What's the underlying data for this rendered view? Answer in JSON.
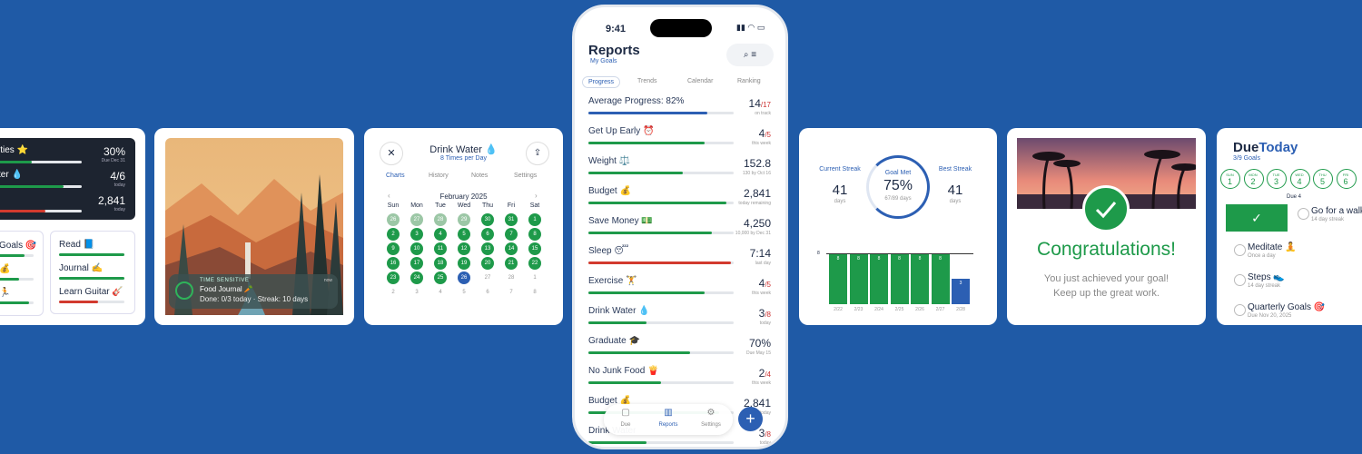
{
  "left_card": {
    "dark_rows": [
      {
        "label": "ities ⭐",
        "value": "30%",
        "sub": "Due Dec 31"
      },
      {
        "label": "ter 💧",
        "value": "4/6",
        "sub": "today"
      },
      {
        "label": "",
        "value": "2,841",
        "sub": "today"
      }
    ],
    "left_list": [
      "Goals 🎯",
      "💰",
      "🏃"
    ],
    "right_list": [
      "Read 📘",
      "Journal ✍️",
      "Learn Guitar 🎸"
    ]
  },
  "image_card": {
    "notification": {
      "tag": "TIME SENSITIVE",
      "title": "Food Journal 🥕",
      "body": "Done: 0/3 today · Streak: 10 days",
      "time": "now"
    }
  },
  "calendar_card": {
    "title": "Drink Water 💧",
    "subtitle": "8 Times per Day",
    "tabs": [
      "Charts",
      "History",
      "Notes",
      "Settings"
    ],
    "month": "February 2025",
    "weekdays": [
      "Sun",
      "Mon",
      "Tue",
      "Wed",
      "Thu",
      "Fri",
      "Sat"
    ],
    "rows": [
      [
        [
          "26",
          "faded"
        ],
        [
          "27",
          "faded"
        ],
        [
          "28",
          "faded"
        ],
        [
          "29",
          "faded"
        ],
        [
          "30",
          "done"
        ],
        [
          "31",
          "done"
        ],
        [
          "1",
          "done"
        ]
      ],
      [
        [
          "2",
          "done"
        ],
        [
          "3",
          "done"
        ],
        [
          "4",
          "done"
        ],
        [
          "5",
          "done"
        ],
        [
          "6",
          "done"
        ],
        [
          "7",
          "done"
        ],
        [
          "8",
          "done"
        ]
      ],
      [
        [
          "9",
          "done"
        ],
        [
          "10",
          "done"
        ],
        [
          "11",
          "done"
        ],
        [
          "12",
          "done"
        ],
        [
          "13",
          "done"
        ],
        [
          "14",
          "done"
        ],
        [
          "15",
          "done"
        ]
      ],
      [
        [
          "16",
          "done"
        ],
        [
          "17",
          "done"
        ],
        [
          "18",
          "done"
        ],
        [
          "19",
          "done"
        ],
        [
          "20",
          "done"
        ],
        [
          "21",
          "done"
        ],
        [
          "22",
          "done"
        ]
      ],
      [
        [
          "23",
          "done"
        ],
        [
          "24",
          "done"
        ],
        [
          "25",
          "done"
        ],
        [
          "26",
          "today"
        ],
        [
          "27",
          "next"
        ],
        [
          "28",
          "next"
        ],
        [
          "1",
          "next"
        ]
      ],
      [
        [
          "2",
          "next"
        ],
        [
          "3",
          "next"
        ],
        [
          "4",
          "next"
        ],
        [
          "5",
          "next"
        ],
        [
          "6",
          "next"
        ],
        [
          "7",
          "next"
        ],
        [
          "8",
          "next"
        ]
      ]
    ]
  },
  "phone": {
    "time": "9:41",
    "title": "Reports",
    "subtitle": "My Goals",
    "tabs": [
      "Progress",
      "Trends",
      "Calendar",
      "Ranking"
    ],
    "items": [
      {
        "label": "Average Progress: 82%",
        "value": "14",
        "denom": "/17",
        "sub": "on track",
        "bar": "blue"
      },
      {
        "label": "Get Up Early ⏰",
        "value": "4",
        "denom": "/5",
        "sub": "this week",
        "bar": "green"
      },
      {
        "label": "Weight ⚖️",
        "value": "152.8",
        "denom": "",
        "sub": "130 by Oct 16",
        "bar": "green"
      },
      {
        "label": "Budget 💰",
        "value": "2,841",
        "denom": "",
        "sub": "today remaining",
        "bar": "green"
      },
      {
        "label": "Save Money 💵",
        "value": "4,250",
        "denom": "",
        "sub": "10,000 by Dec 31",
        "bar": "green"
      },
      {
        "label": "Sleep 😴",
        "value": "7:14",
        "denom": "",
        "sub": "last day",
        "bar": "red"
      },
      {
        "label": "Exercise 🏋️",
        "value": "4",
        "denom": "/5",
        "sub": "this week",
        "bar": "green"
      },
      {
        "label": "Drink Water 💧",
        "value": "3",
        "denom": "/8",
        "sub": "today",
        "bar": "green"
      },
      {
        "label": "Graduate 🎓",
        "value": "70%",
        "denom": "",
        "sub": "Due May 15",
        "bar": "green"
      },
      {
        "label": "No Junk Food 🍟",
        "value": "2",
        "denom": "/4",
        "sub": "this week",
        "bar": "green"
      },
      {
        "label": "Budget 💰",
        "value": "2,841",
        "denom": "",
        "sub": "today",
        "bar": "green"
      },
      {
        "label": "Drink Water",
        "value": "3",
        "denom": "/8",
        "sub": "today",
        "bar": "green"
      }
    ],
    "nav": [
      "Due",
      "Reports",
      "Settings"
    ]
  },
  "streak_card": {
    "current": {
      "label": "Current Streak",
      "value": "41",
      "unit": "days"
    },
    "goal": {
      "label": "Goal Met",
      "value": "75%",
      "sub": "67/89 days"
    },
    "best": {
      "label": "Best Streak",
      "value": "41",
      "unit": "days"
    },
    "bar_labels": [
      "8",
      "8",
      "8",
      "8",
      "8",
      "8",
      "3"
    ],
    "dates": [
      "2/22",
      "2/23",
      "2/24",
      "2/25",
      "2/26",
      "2/27",
      "2/28"
    ],
    "axis_label": "8"
  },
  "congrats_card": {
    "title": "Congratulations!",
    "line1": "You just achieved your goal!",
    "line2": "Keep up the great work."
  },
  "due_card": {
    "title_a": "Due",
    "title_b": "Today",
    "subtitle": "3/9 Goals",
    "days": [
      [
        "SUN",
        "1"
      ],
      [
        "MON",
        "2"
      ],
      [
        "TUE",
        "3"
      ],
      [
        "WED",
        "4"
      ],
      [
        "THU",
        "5"
      ],
      [
        "FRI",
        "6"
      ]
    ],
    "due_label": "Due 4",
    "items": [
      {
        "title": "Go for a walk",
        "sub": "14 day streak"
      },
      {
        "title": "Meditate 🧘",
        "sub": "Once a day"
      },
      {
        "title": "Steps 👟",
        "sub": "14 day streak"
      },
      {
        "title": "Quarterly Goals 🎯",
        "sub": "Due Nov 20, 2025"
      }
    ]
  }
}
